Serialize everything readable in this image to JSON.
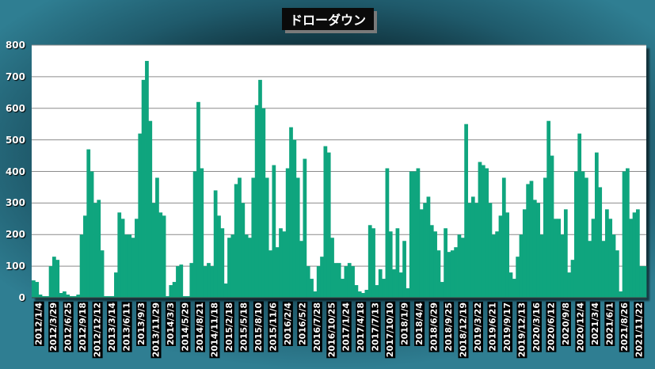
{
  "chart_data": {
    "type": "bar",
    "title": "ドローダウン",
    "xlabel": "",
    "ylabel": "",
    "ylim": [
      0,
      800
    ],
    "yticks": [
      0,
      100,
      200,
      300,
      400,
      500,
      600,
      700,
      800
    ],
    "grid": true,
    "legend": "none",
    "bar_color": "#0fa57e",
    "plot_background": "#ffffff",
    "grid_color": "#8c8c8c",
    "x_tick_labels": [
      "2012/1/4",
      "2012/3/29",
      "2012/6/25",
      "2012/9/18",
      "2012/12/12",
      "2013/3/14",
      "2013/6/11",
      "2013/9/3",
      "2013/11/29",
      "2014/3/3",
      "2014/5/29",
      "2014/8/21",
      "2014/11/18",
      "2015/2/18",
      "2015/5/18",
      "2015/8/10",
      "2015/11/6",
      "2016/2/4",
      "2016/5/2",
      "2016/7/28",
      "2016/10/25",
      "2017/1/24",
      "2017/4/18",
      "2017/7/13",
      "2017/10/10",
      "2018/1/9",
      "2018/4/4",
      "2018/6/29",
      "2018/9/25",
      "2018/12/19",
      "2019/3/22",
      "2019/6/21",
      "2019/9/17",
      "2019/12/13",
      "2020/3/16",
      "2020/6/12",
      "2020/9/8",
      "2020/12/4",
      "2021/3/4",
      "2021/6/1",
      "2021/8/26",
      "2021/11/22"
    ],
    "values": [
      55,
      50,
      10,
      5,
      5,
      100,
      130,
      120,
      15,
      20,
      10,
      5,
      5,
      10,
      200,
      260,
      470,
      400,
      300,
      310,
      150,
      5,
      5,
      5,
      80,
      270,
      250,
      200,
      200,
      190,
      250,
      520,
      690,
      750,
      560,
      300,
      380,
      270,
      260,
      5,
      40,
      50,
      100,
      105,
      5,
      5,
      110,
      400,
      620,
      410,
      100,
      110,
      100,
      340,
      260,
      220,
      45,
      190,
      200,
      360,
      380,
      300,
      200,
      190,
      380,
      610,
      690,
      600,
      380,
      150,
      420,
      160,
      220,
      210,
      410,
      540,
      500,
      380,
      180,
      440,
      100,
      60,
      20,
      100,
      130,
      480,
      460,
      190,
      110,
      110,
      60,
      100,
      110,
      100,
      40,
      20,
      15,
      25,
      230,
      220,
      40,
      90,
      60,
      410,
      210,
      90,
      220,
      80,
      180,
      30,
      400,
      400,
      410,
      280,
      300,
      320,
      230,
      210,
      150,
      50,
      220,
      145,
      150,
      160,
      200,
      190,
      550,
      300,
      320,
      300,
      430,
      420,
      410,
      300,
      200,
      210,
      260,
      380,
      270,
      80,
      60,
      130,
      200,
      280,
      360,
      370,
      310,
      300,
      200,
      380,
      560,
      450,
      250,
      250,
      200,
      280,
      80,
      120,
      400,
      520,
      400,
      380,
      180,
      250,
      460,
      350,
      180,
      280,
      250,
      200,
      150,
      20,
      400,
      410,
      250,
      270,
      280,
      100,
      100
    ]
  }
}
